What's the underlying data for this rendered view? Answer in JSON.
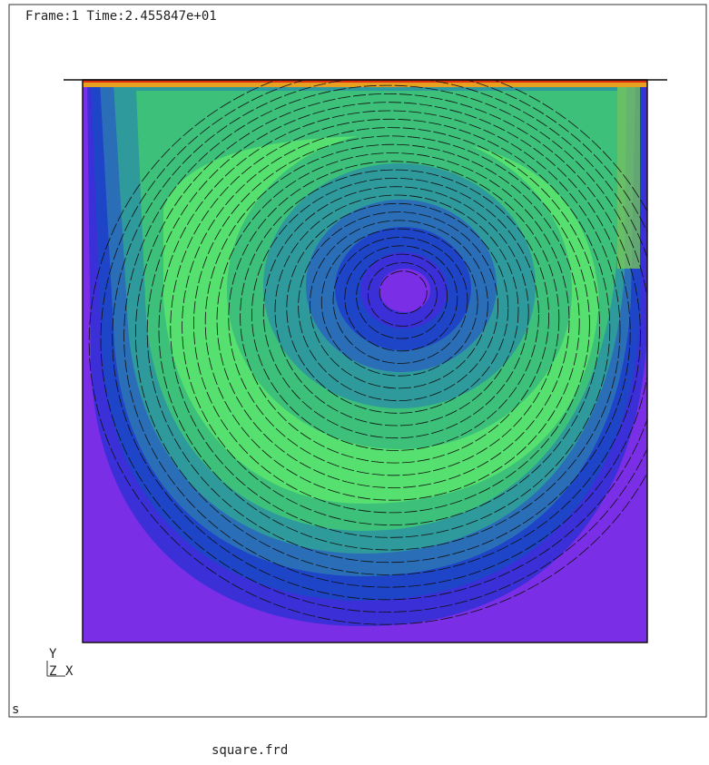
{
  "header": {
    "frame_info": "Frame:1 Time:2.455847e+01"
  },
  "axis_triad": {
    "y": "Y",
    "z": "Z",
    "x": "X"
  },
  "status": "s",
  "footer": {
    "filename": "square.frd"
  }
}
